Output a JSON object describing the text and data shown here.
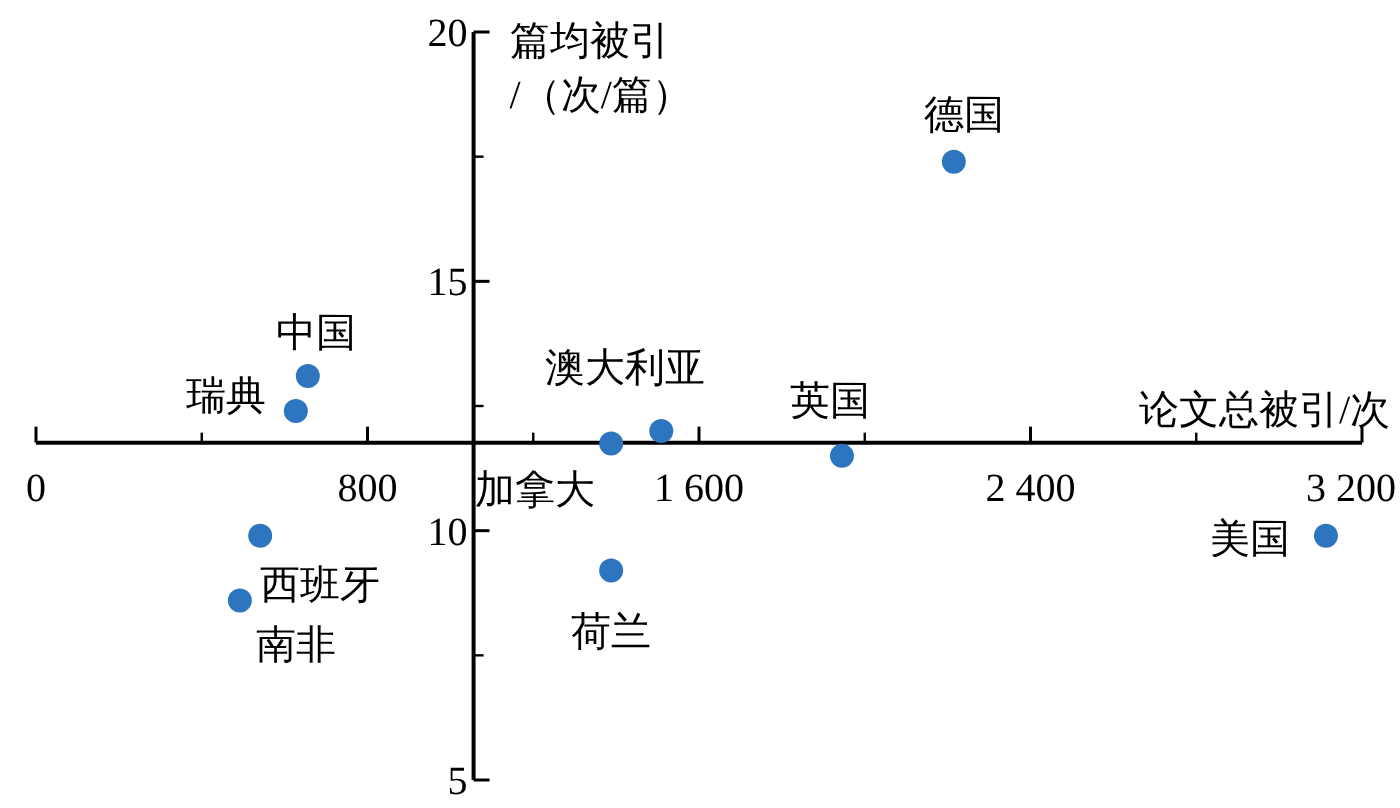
{
  "chart_data": {
    "type": "scatter",
    "xlabel": "论文总被引/次",
    "ylabel": "篇均被引/（次/篇）",
    "xlim": [
      0,
      3200
    ],
    "ylim": [
      5,
      20
    ],
    "xticks": [
      0,
      800,
      {
        "value": 1600,
        "label": "1 600"
      },
      {
        "value": 2400,
        "label": "2 400"
      },
      {
        "value": 3200,
        "label": "3 200"
      }
    ],
    "yticks": [
      5,
      10,
      15,
      20
    ],
    "marker": "circle",
    "series": [
      {
        "name": "中国",
        "color": "#2e75c0",
        "x": [
          656
        ],
        "values": [
          13.1
        ]
      },
      {
        "name": "瑞典",
        "color": "#2e75c0",
        "x": [
          627
        ],
        "values": [
          12.4
        ]
      },
      {
        "name": "西班牙",
        "color": "#2e75c0",
        "x": [
          541
        ],
        "values": [
          9.9
        ]
      },
      {
        "name": "南非",
        "color": "#2e75c0",
        "x": [
          492
        ],
        "values": [
          8.6
        ]
      },
      {
        "name": "加拿大",
        "color": "#2e75c0",
        "x": [
          1388
        ],
        "values": [
          11.75
        ]
      },
      {
        "name": "澳大利亚",
        "color": "#2e75c0",
        "x": [
          1509
        ],
        "values": [
          12.0
        ]
      },
      {
        "name": "荷兰",
        "color": "#2e75c0",
        "x": [
          1388
        ],
        "values": [
          9.2
        ]
      },
      {
        "name": "英国",
        "color": "#2e75c0",
        "x": [
          1945
        ],
        "values": [
          11.5
        ]
      },
      {
        "name": "德国",
        "color": "#2e75c0",
        "x": [
          2215
        ],
        "values": [
          17.4
        ]
      },
      {
        "name": "美国",
        "color": "#2e75c0",
        "x": [
          3113
        ],
        "values": [
          9.9
        ]
      }
    ]
  }
}
